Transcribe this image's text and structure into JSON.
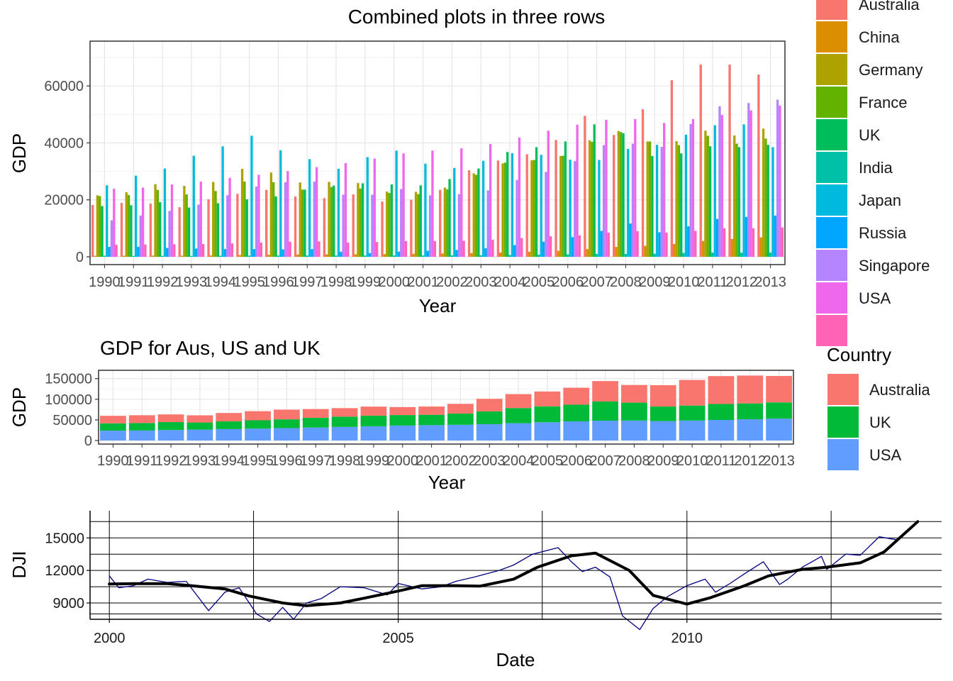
{
  "page_title": "Combined plots in three rows",
  "chart_data": [
    {
      "type": "bar",
      "title": "Combined plots in three rows",
      "xlabel": "Year",
      "ylabel": "GDP",
      "ylim": [
        0,
        70000
      ],
      "yticks": [
        0,
        20000,
        40000,
        60000
      ],
      "grid": true,
      "legend_placement": "right",
      "categories": [
        "1990",
        "1991",
        "1992",
        "1993",
        "1994",
        "1995",
        "1996",
        "1997",
        "1998",
        "1999",
        "2000",
        "2001",
        "2002",
        "2003",
        "2004",
        "2005",
        "2006",
        "2007",
        "2008",
        "2009",
        "2010",
        "2011",
        "2012",
        "2013"
      ],
      "series": [
        {
          "name": "Australia",
          "color": "#F8766D",
          "values": [
            18200,
            18900,
            18700,
            17400,
            20200,
            22100,
            23500,
            21200,
            20600,
            21900,
            19400,
            20000,
            23500,
            30400,
            33800,
            36000,
            41000,
            49500,
            42800,
            51800,
            62000,
            67500,
            67500,
            64000
          ]
        },
        {
          "name": "China",
          "color": "#DB8E00",
          "values": [
            350,
            360,
            420,
            380,
            470,
            610,
            710,
            780,
            830,
            880,
            960,
            1050,
            1150,
            1290,
            1510,
            1750,
            2100,
            2700,
            3470,
            3840,
            4520,
            5550,
            6260,
            6800
          ]
        },
        {
          "name": "Germany",
          "color": "#AEA200",
          "values": [
            21600,
            22700,
            25500,
            24900,
            26300,
            30900,
            29600,
            26100,
            26300,
            25900,
            22900,
            22800,
            24300,
            29300,
            32800,
            33900,
            35400,
            40900,
            44200,
            40500,
            40600,
            44300,
            42600,
            45000
          ]
        },
        {
          "name": "France",
          "color": "#64B200",
          "values": [
            21300,
            21700,
            23500,
            21900,
            23100,
            26400,
            26200,
            23600,
            24500,
            24000,
            22400,
            22000,
            23700,
            28800,
            33100,
            34000,
            35500,
            40400,
            43800,
            40500,
            39200,
            42500,
            39700,
            41500
          ]
        },
        {
          "name": "UK",
          "color": "#00BD5C",
          "values": [
            17800,
            18100,
            19200,
            17300,
            18800,
            20200,
            21200,
            23600,
            25000,
            25800,
            25400,
            25100,
            27300,
            31000,
            36800,
            38500,
            40500,
            46500,
            43400,
            35400,
            36300,
            38800,
            38500,
            39300
          ]
        },
        {
          "name": "India",
          "color": "#00C1A7",
          "values": [
            380,
            310,
            320,
            300,
            350,
            380,
            400,
            420,
            410,
            440,
            450,
            460,
            480,
            540,
            630,
            720,
            800,
            1020,
            1000,
            1090,
            1360,
            1460,
            1450,
            1500
          ]
        },
        {
          "name": "Japan",
          "color": "#00BADE",
          "values": [
            25100,
            28500,
            31000,
            35500,
            38800,
            42500,
            37400,
            34300,
            30900,
            35000,
            37300,
            32700,
            31200,
            33700,
            36400,
            35800,
            34100,
            34000,
            37900,
            39300,
            42900,
            46200,
            46500,
            38500
          ]
        },
        {
          "name": "Russia",
          "color": "#00A6FF",
          "values": [
            3500,
            3500,
            3100,
            2900,
            2700,
            2700,
            2600,
            2700,
            1800,
            1300,
            1800,
            2100,
            2400,
            3000,
            4100,
            5300,
            6900,
            9100,
            11700,
            8600,
            10700,
            13300,
            14000,
            14500
          ]
        },
        {
          "name": "Singapore",
          "color": "#B385FF",
          "values": [
            12800,
            14500,
            16100,
            18300,
            21600,
            24700,
            26200,
            26400,
            21800,
            21800,
            23800,
            21600,
            22000,
            23300,
            27000,
            29800,
            33600,
            39200,
            39700,
            38600,
            46600,
            52900,
            54000,
            55200
          ]
        },
        {
          "name": "USA",
          "color": "#EF67EB",
          "values": [
            23900,
            24300,
            25400,
            26400,
            27700,
            28800,
            30100,
            31500,
            32900,
            34500,
            36300,
            37300,
            38100,
            39600,
            41900,
            44300,
            46400,
            48100,
            48400,
            47000,
            48400,
            49800,
            51400,
            53100
          ]
        },
        {
          "name": "",
          "color": "#FF63B6",
          "values": [
            4200,
            4300,
            4400,
            4500,
            4700,
            5000,
            5300,
            5400,
            5000,
            5200,
            5500,
            5500,
            5600,
            6000,
            6600,
            7200,
            7500,
            8500,
            9000,
            8500,
            9100,
            10000,
            10000,
            10300
          ]
        }
      ]
    },
    {
      "type": "bar",
      "stacked": true,
      "title": "GDP for Aus, US and UK",
      "xlabel": "Year",
      "ylabel": "GDP",
      "ylim": [
        0,
        165000
      ],
      "yticks": [
        0,
        50000,
        100000,
        150000
      ],
      "grid": true,
      "legend_title": "Country",
      "legend_placement": "right",
      "categories": [
        "1990",
        "1991",
        "1992",
        "1993",
        "1994",
        "1995",
        "1996",
        "1997",
        "1998",
        "1999",
        "2000",
        "2001",
        "2002",
        "2003",
        "2004",
        "2005",
        "2006",
        "2007",
        "2008",
        "2009",
        "2010",
        "2011",
        "2012",
        "2013"
      ],
      "series": [
        {
          "name": "USA",
          "color": "#619CFF",
          "values": [
            23900,
            24300,
            25400,
            26400,
            27700,
            28800,
            30100,
            31500,
            32900,
            34500,
            36300,
            37300,
            38100,
            39600,
            41900,
            44300,
            46400,
            48100,
            48400,
            47000,
            48400,
            49800,
            51400,
            53100
          ]
        },
        {
          "name": "UK",
          "color": "#00BA38",
          "values": [
            17800,
            18100,
            19200,
            17300,
            18800,
            20200,
            21200,
            23600,
            25000,
            25800,
            25400,
            25100,
            27300,
            31000,
            36800,
            38500,
            40500,
            46500,
            43400,
            35400,
            36300,
            38800,
            38500,
            39300
          ]
        },
        {
          "name": "Australia",
          "color": "#F8766D",
          "values": [
            18200,
            18900,
            18700,
            17400,
            20200,
            22100,
            23500,
            21200,
            20600,
            21900,
            19400,
            20000,
            23500,
            30400,
            33800,
            36000,
            41000,
            49500,
            42800,
            51800,
            62000,
            67500,
            67500,
            64000
          ]
        }
      ]
    },
    {
      "type": "line",
      "xlabel": "Date",
      "ylabel": "DJI",
      "xlim": [
        "1999-09-01",
        "2014-05-31"
      ],
      "xticks": [
        2000,
        2005,
        2010
      ],
      "ylim": [
        7500,
        17500
      ],
      "yticks": [
        9000,
        12000,
        15000
      ],
      "grid": true,
      "series": [
        {
          "name": "",
          "color": "#000080",
          "x": [
            "2000-01-01",
            "2000-03-01",
            "2000-06-01",
            "2000-09-01",
            "2001-01-01",
            "2001-05-01",
            "2001-09-20",
            "2002-01-01",
            "2002-04-01",
            "2002-07-20",
            "2002-10-09",
            "2003-01-01",
            "2003-03-11",
            "2003-06-01",
            "2003-09-01",
            "2004-01-01",
            "2004-06-01",
            "2004-10-25",
            "2005-01-01",
            "2005-06-01",
            "2005-10-01",
            "2006-01-01",
            "2006-05-01",
            "2006-10-01",
            "2007-01-01",
            "2007-05-01",
            "2007-10-09",
            "2008-01-01",
            "2008-03-10",
            "2008-06-01",
            "2008-09-01",
            "2008-11-20",
            "2009-03-09",
            "2009-06-01",
            "2009-09-01",
            "2010-01-01",
            "2010-04-26",
            "2010-07-01",
            "2010-10-01",
            "2011-01-01",
            "2011-04-29",
            "2011-08-10",
            "2011-10-01",
            "2012-01-01",
            "2012-05-01",
            "2012-06-04",
            "2012-10-01",
            "2013-01-01",
            "2013-05-01",
            "2013-08-30",
            "2013-12-31"
          ],
          "values": [
            11500,
            10400,
            10600,
            11200,
            10900,
            11000,
            8300,
            10000,
            10400,
            8000,
            7300,
            8600,
            7500,
            9000,
            9400,
            10500,
            10400,
            9750,
            10800,
            10300,
            10500,
            11000,
            11400,
            12000,
            12500,
            13500,
            14100,
            12800,
            11900,
            12300,
            11400,
            7800,
            6550,
            8500,
            9600,
            10600,
            11200,
            10000,
            10800,
            11700,
            12800,
            10700,
            11200,
            12300,
            13300,
            12100,
            13500,
            13400,
            15100,
            14800,
            16500
          ]
        },
        {
          "name": "",
          "color": "#000000",
          "x": [
            "2000-01-01",
            "2000-06-01",
            "2001-01-01",
            "2001-06-01",
            "2002-01-01",
            "2002-06-01",
            "2003-01-01",
            "2003-06-01",
            "2004-01-01",
            "2004-06-01",
            "2005-01-01",
            "2005-06-01",
            "2006-01-01",
            "2006-06-01",
            "2007-01-01",
            "2007-06-01",
            "2008-01-01",
            "2008-06-01",
            "2009-01-01",
            "2009-06-01",
            "2010-01-01",
            "2010-06-01",
            "2011-01-01",
            "2011-06-01",
            "2012-01-01",
            "2012-06-01",
            "2013-01-01",
            "2013-06-01",
            "2013-12-31"
          ],
          "values": [
            10750,
            10780,
            10780,
            10600,
            10300,
            9650,
            9000,
            8750,
            9000,
            9450,
            10100,
            10600,
            10600,
            10550,
            11200,
            12300,
            13350,
            13600,
            12000,
            9700,
            8900,
            9500,
            10600,
            11500,
            12100,
            12300,
            12700,
            13700,
            16500
          ]
        }
      ]
    }
  ]
}
